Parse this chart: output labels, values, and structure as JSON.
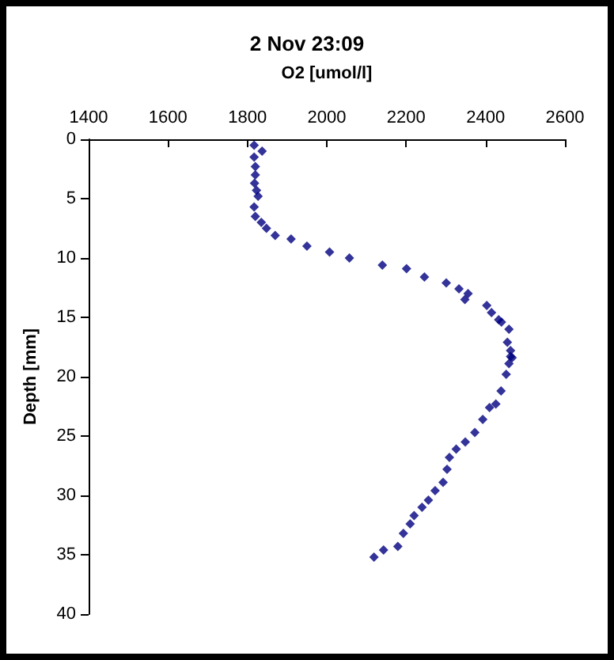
{
  "chart_data": {
    "type": "scatter",
    "title": "2 Nov 23:09",
    "xlabel": "O2 [umol/l]",
    "ylabel": "Depth [mm]",
    "x": [
      1817,
      1837,
      1817,
      1820,
      1820,
      1818,
      1823,
      1827,
      1817,
      1820,
      1835,
      1848,
      1870,
      1910,
      1950,
      2007,
      2057,
      2140,
      2201,
      2246,
      2301,
      2333,
      2356,
      2348,
      2403,
      2415,
      2433,
      2440,
      2459,
      2455,
      2463,
      2467,
      2463,
      2459,
      2452,
      2439,
      2426,
      2410,
      2393,
      2373,
      2349,
      2326,
      2309,
      2303,
      2293,
      2273,
      2256,
      2240,
      2220,
      2210,
      2193,
      2179,
      2143,
      2119
    ],
    "series": [
      {
        "color": "#000080",
        "values": [
          0.5,
          1.0,
          1.5,
          2.3,
          3.0,
          3.7,
          4.3,
          4.8,
          5.7,
          6.5,
          7.0,
          7.5,
          8.1,
          8.4,
          9.0,
          9.5,
          10.0,
          10.6,
          10.9,
          11.6,
          12.1,
          12.6,
          13.0,
          13.5,
          14.0,
          14.6,
          15.2,
          15.4,
          16.0,
          17.1,
          17.8,
          18.4,
          18.3,
          18.9,
          19.8,
          21.2,
          22.3,
          22.6,
          23.6,
          24.7,
          25.5,
          26.1,
          26.8,
          27.8,
          28.9,
          29.6,
          30.4,
          31.0,
          31.7,
          32.4,
          33.2,
          34.3,
          34.6,
          35.2
        ]
      }
    ],
    "xlim": [
      1400,
      2600
    ],
    "xticks": [
      1400,
      1600,
      1800,
      2000,
      2200,
      2400,
      2600
    ],
    "ylim": [
      40,
      0
    ],
    "yticks": [
      0,
      5,
      10,
      15,
      20,
      25,
      30,
      35,
      40
    ],
    "grid": false,
    "marker": "diamond"
  }
}
